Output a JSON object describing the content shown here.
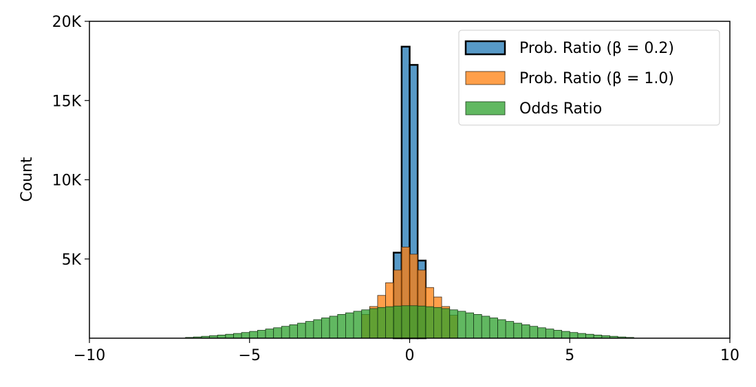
{
  "chart_data": {
    "type": "histogram",
    "ylabel": "Count",
    "xlim": [
      -10,
      10
    ],
    "xticks": [
      {
        "value": -10,
        "label": "−10"
      },
      {
        "value": -5,
        "label": "−5"
      },
      0,
      5,
      10
    ],
    "ylim": [
      0,
      20000
    ],
    "yticks": [
      {
        "value": 5000,
        "label": "5K"
      },
      {
        "value": 10000,
        "label": "10K"
      },
      {
        "value": 15000,
        "label": "15K"
      },
      {
        "value": 20000,
        "label": "20K"
      }
    ],
    "legend": "upper right",
    "series": [
      {
        "name": "Prob. Ratio (β = 0.2)",
        "color": "#1f77b4",
        "edgecolor": "#000000",
        "bins": [
          -0.5,
          -0.25,
          0,
          0.25,
          0.5
        ],
        "values": [
          5400,
          18400,
          17250,
          4900
        ]
      },
      {
        "name": "Prob. Ratio (β = 1.0)",
        "color": "#ff7f0e",
        "edgecolor": "#3a2a1a",
        "bins": [
          -1.5,
          -1.25,
          -1,
          -0.75,
          -0.5,
          -0.25,
          0,
          0.25,
          0.5,
          0.75,
          1,
          1.25,
          1.5
        ],
        "values": [
          1500,
          2000,
          2700,
          3500,
          4300,
          5750,
          5300,
          4300,
          3200,
          2600,
          2000,
          1450
        ]
      },
      {
        "name": "Odds Ratio",
        "color": "#2ca02c",
        "edgecolor": "#1a3a1a",
        "bins": [
          -7,
          -6.75,
          -6.5,
          -6.25,
          -6,
          -5.75,
          -5.5,
          -5.25,
          -5,
          -4.75,
          -4.5,
          -4.25,
          -4,
          -3.75,
          -3.5,
          -3.25,
          -3,
          -2.75,
          -2.5,
          -2.25,
          -2,
          -1.75,
          -1.5,
          -1.25,
          -1,
          -0.75,
          -0.5,
          -0.25,
          0,
          0.25,
          0.5,
          0.75,
          1,
          1.25,
          1.5,
          1.75,
          2,
          2.25,
          2.5,
          2.75,
          3,
          3.25,
          3.5,
          3.75,
          4,
          4.25,
          4.5,
          4.75,
          5,
          5.25,
          5.5,
          5.75,
          6,
          6.25,
          6.5,
          6.75,
          7
        ],
        "values": [
          50,
          80,
          120,
          160,
          200,
          250,
          300,
          360,
          430,
          500,
          580,
          660,
          750,
          850,
          950,
          1060,
          1170,
          1280,
          1390,
          1500,
          1600,
          1700,
          1790,
          1870,
          1940,
          1990,
          2030,
          2050,
          2050,
          2030,
          1990,
          1940,
          1870,
          1790,
          1700,
          1600,
          1500,
          1390,
          1280,
          1170,
          1060,
          950,
          850,
          750,
          660,
          580,
          500,
          430,
          360,
          300,
          250,
          200,
          160,
          120,
          80,
          50
        ]
      }
    ]
  }
}
